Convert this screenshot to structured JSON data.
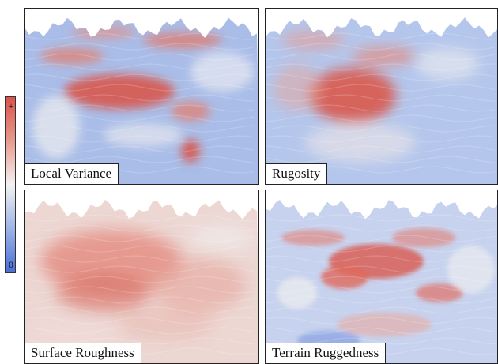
{
  "colorbar": {
    "max_label": "+",
    "min_label": "0"
  },
  "panels": [
    {
      "label": "Local Variance"
    },
    {
      "label": "Rugosity"
    },
    {
      "label": "Surface Roughness"
    },
    {
      "label": "Terrain Ruggedness"
    }
  ]
}
